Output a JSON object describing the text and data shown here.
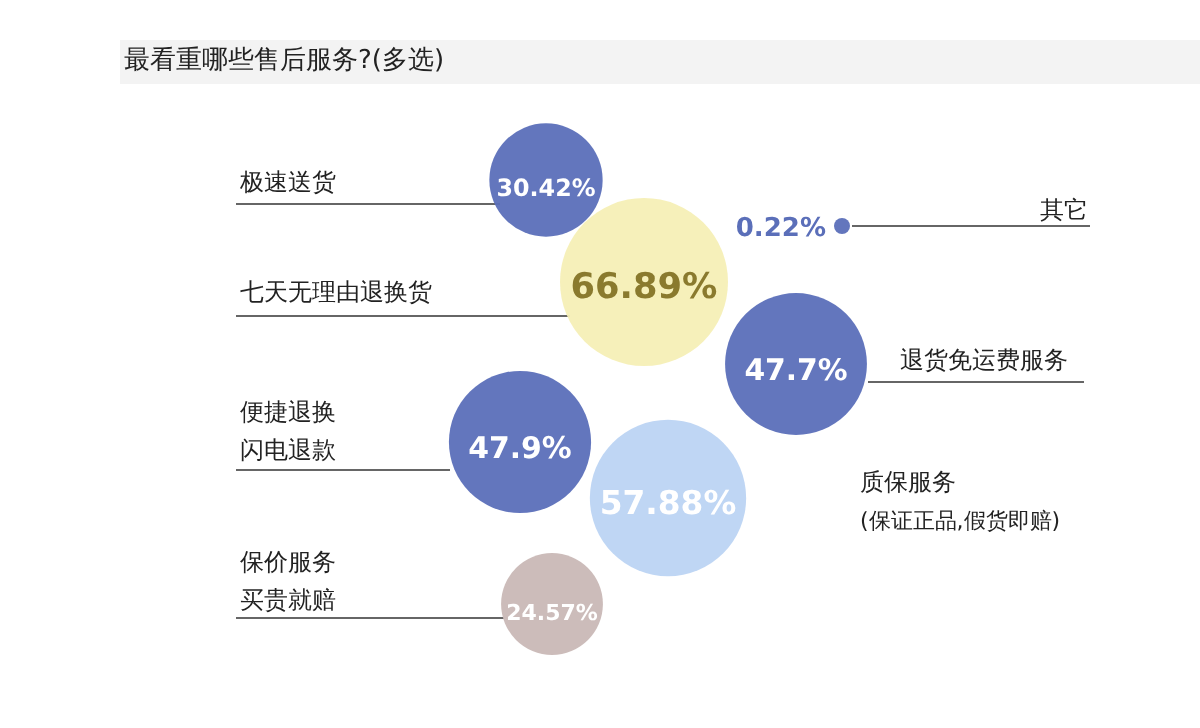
{
  "chart_data": {
    "type": "other",
    "title": "最看重哪些售后服务?(多选)",
    "categories": [
      "极速送货",
      "七天无理由退换货",
      "其它",
      "退货免运费服务",
      "便捷退换闪电退款",
      "质保服务\n(保证正品,假货即赔)",
      "保价服务买贵就赔"
    ],
    "values": [
      30.42,
      66.89,
      0.22,
      47.7,
      47.9,
      57.88,
      24.57
    ],
    "value_labels": [
      "30.42%",
      "66.89%",
      "0.22%",
      "47.7%",
      "47.9%",
      "57.88%",
      "24.57%"
    ],
    "colors": [
      "#5b6fb9",
      "#f6efb6",
      "#5b6fb9",
      "#5b6fb9",
      "#5b6fb9",
      "#bcd4f3",
      "#c9b8b6"
    ]
  }
}
